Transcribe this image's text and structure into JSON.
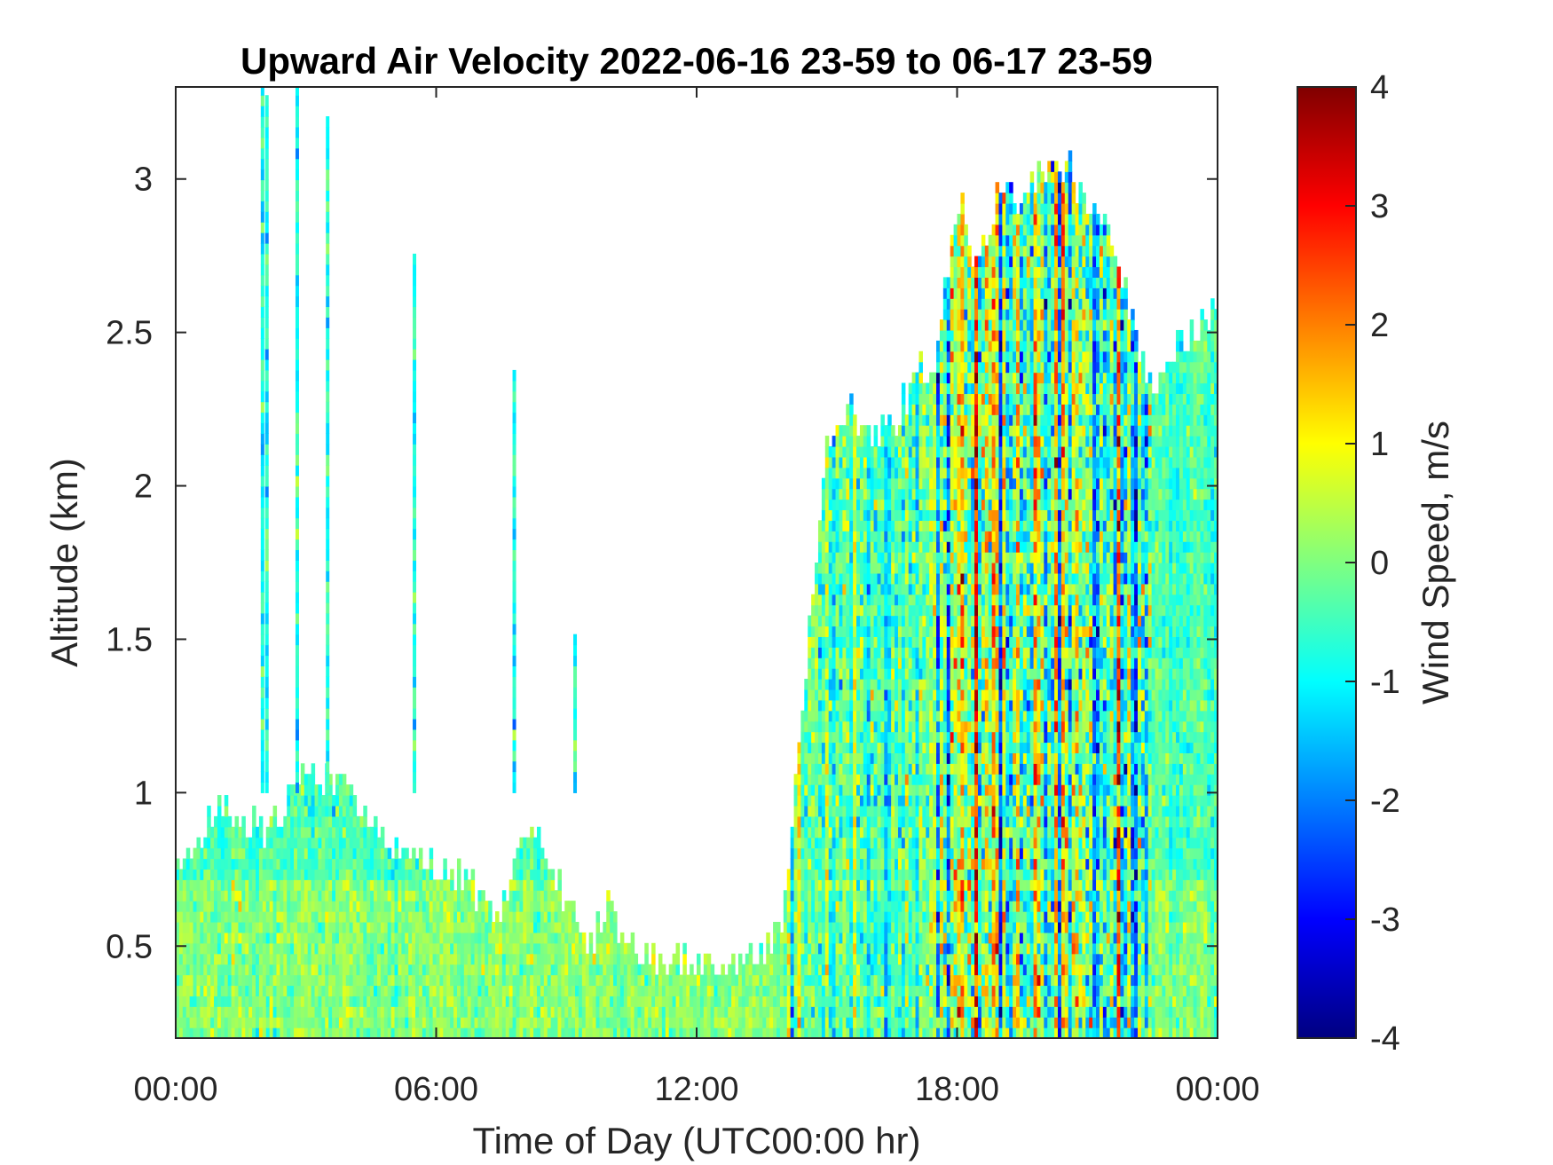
{
  "chart_data": {
    "type": "heatmap",
    "title": "Upward Air Velocity 2022-06-16 23-59 to 06-17 23-59",
    "xlabel": "Time of Day (UTC00:00 hr)",
    "ylabel": "Altitude (km)",
    "colorbar_label": "Wind Speed, m/s",
    "colormap": "jet",
    "xlim": [
      0,
      24
    ],
    "ylim": [
      0.2,
      3.3
    ],
    "clim": [
      -4,
      4
    ],
    "x_ticks": [
      0,
      6,
      12,
      18,
      24
    ],
    "x_tick_labels": [
      "00:00",
      "06:00",
      "12:00",
      "18:00",
      "00:00"
    ],
    "y_ticks": [
      0.5,
      1,
      1.5,
      2,
      2.5,
      3
    ],
    "y_tick_labels": [
      "0.5",
      "1",
      "1.5",
      "2",
      "2.5",
      "3"
    ],
    "colorbar_ticks": [
      -4,
      -3,
      -2,
      -1,
      0,
      1,
      2,
      3,
      4
    ],
    "colorbar_tick_labels": [
      "-4",
      "-3",
      "-2",
      "-1",
      "0",
      "1",
      "2",
      "3",
      "4"
    ],
    "grid": false,
    "data_top_profile": {
      "time_hr": [
        0,
        0.5,
        1.0,
        1.5,
        2.0,
        2.5,
        3.0,
        3.5,
        4.0,
        4.5,
        5.0,
        5.5,
        6.0,
        6.5,
        7.0,
        7.5,
        8.0,
        8.5,
        9.0,
        9.5,
        10.0,
        10.5,
        11.0,
        11.5,
        12.0,
        12.5,
        13.0,
        13.5,
        14.0,
        14.5,
        15.0,
        15.5,
        16.0,
        16.5,
        17.0,
        17.5,
        18.0,
        18.5,
        19.0,
        19.5,
        20.0,
        20.5,
        21.0,
        21.5,
        22.0,
        22.5,
        23.0,
        23.5,
        24.0
      ],
      "top_altitude_km": [
        0.75,
        0.82,
        0.95,
        0.9,
        0.88,
        0.95,
        1.05,
        1.05,
        1.0,
        0.9,
        0.8,
        0.78,
        0.77,
        0.72,
        0.66,
        0.6,
        0.88,
        0.82,
        0.65,
        0.52,
        0.62,
        0.5,
        0.44,
        0.44,
        0.47,
        0.47,
        0.46,
        0.48,
        0.58,
        1.4,
        2.15,
        2.25,
        2.15,
        2.2,
        2.35,
        2.4,
        2.95,
        2.7,
        3.0,
        2.95,
        3.05,
        3.05,
        2.9,
        2.85,
        2.55,
        2.3,
        2.45,
        2.5,
        2.6
      ]
    },
    "spikes": [
      {
        "time_hr": 2.0,
        "top_altitude_km": 3.3
      },
      {
        "time_hr": 2.1,
        "top_altitude_km": 3.25
      },
      {
        "time_hr": 2.8,
        "top_altitude_km": 3.3
      },
      {
        "time_hr": 3.5,
        "top_altitude_km": 3.2
      },
      {
        "time_hr": 5.5,
        "top_altitude_km": 2.75
      },
      {
        "time_hr": 7.8,
        "top_altitude_km": 2.35
      },
      {
        "time_hr": 9.2,
        "top_altitude_km": 1.5
      }
    ],
    "high_variance_period_hr": [
      17.5,
      22.5
    ]
  }
}
